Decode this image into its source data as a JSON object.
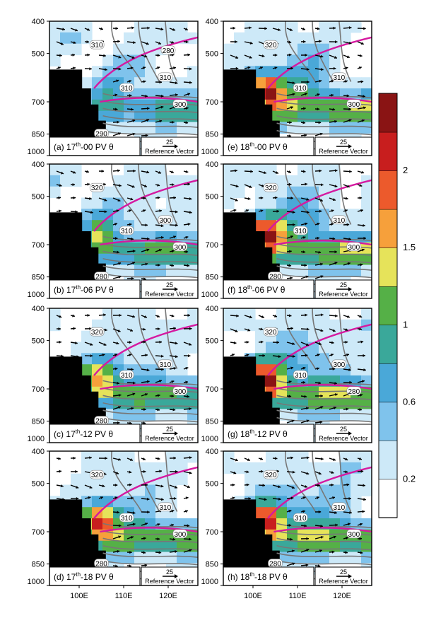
{
  "figure": {
    "x_axis": {
      "ticks": [
        "100E",
        "110E",
        "120E"
      ]
    },
    "y_axis": {
      "ticks": [
        "400",
        "500",
        "700",
        "850",
        "1000"
      ]
    },
    "colorbar": {
      "levels": [
        0.2,
        0.4,
        0.6,
        0.8,
        1.0,
        1.25,
        1.5,
        1.75,
        2.0,
        2.25
      ],
      "colors": [
        "#ffffff",
        "#cde9f8",
        "#7fc3ec",
        "#4aa8d8",
        "#3aa89a",
        "#55b047",
        "#e6e35a",
        "#f6a03b",
        "#ec5a2c",
        "#c81e1e",
        "#8a1414"
      ],
      "labels": [
        "0.2",
        "0.6",
        "1",
        "1.5",
        "2"
      ]
    },
    "reference_vector": {
      "value": "25",
      "label": "Reference Vector"
    }
  },
  "chart_data": [
    {
      "panel": "(a)",
      "label_pre": "(a) 17",
      "sup": "th",
      "label_post": "-00 PV θ",
      "type": "contour",
      "contour_labels": [
        "310",
        "310",
        "310",
        "300",
        "290",
        "280"
      ]
    },
    {
      "panel": "(b)",
      "label_pre": "(b) 17",
      "sup": "th",
      "label_post": "-06 PV θ",
      "type": "contour",
      "contour_labels": [
        "320",
        "310",
        "300",
        "300",
        "280"
      ]
    },
    {
      "panel": "(c)",
      "label_pre": "(c) 17",
      "sup": "th",
      "label_post": "-12 PV θ",
      "type": "contour",
      "contour_labels": [
        "320",
        "310",
        "310",
        "300",
        "280"
      ]
    },
    {
      "panel": "(d)",
      "label_pre": "(d) 17",
      "sup": "th",
      "label_post": "-18 PV θ",
      "type": "contour",
      "contour_labels": [
        "320",
        "310",
        "310",
        "300",
        "280"
      ]
    },
    {
      "panel": "(e)",
      "label_pre": "(e) 18",
      "sup": "th",
      "label_post": "-00 PV θ",
      "type": "contour",
      "contour_labels": [
        "320",
        "310",
        "310",
        "300"
      ]
    },
    {
      "panel": "(f)",
      "label_pre": "(f) 18",
      "sup": "th",
      "label_post": "-06 PV θ",
      "type": "contour",
      "contour_labels": [
        "320",
        "310",
        "310",
        "300",
        "280"
      ]
    },
    {
      "panel": "(g)",
      "label_pre": "(g) 18",
      "sup": "th",
      "label_post": "-12 PV θ",
      "type": "contour",
      "contour_labels": [
        "320",
        "310",
        "300",
        "280"
      ]
    },
    {
      "panel": "(h)",
      "label_pre": "(h) 18",
      "sup": "th",
      "label_post": "-18 PV θ",
      "type": "contour",
      "contour_labels": [
        "320",
        "310",
        "310",
        "300",
        "280"
      ]
    }
  ]
}
